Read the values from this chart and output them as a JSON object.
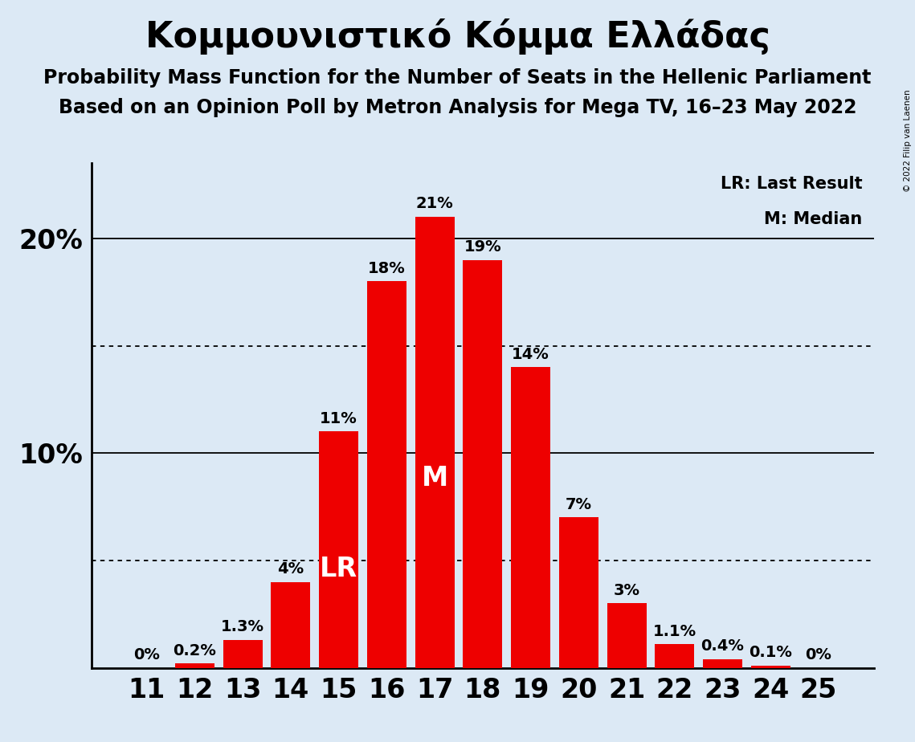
{
  "title": "Κομμουνιστικό Κόμμα Ελλάδας",
  "subtitle1": "Probability Mass Function for the Number of Seats in the Hellenic Parliament",
  "subtitle2": "Based on an Opinion Poll by Metron Analysis for Mega TV, 16–23 May 2022",
  "copyright": "© 2022 Filip van Laenen",
  "categories": [
    11,
    12,
    13,
    14,
    15,
    16,
    17,
    18,
    19,
    20,
    21,
    22,
    23,
    24,
    25
  ],
  "values": [
    0.0,
    0.2,
    1.3,
    4.0,
    11.0,
    18.0,
    21.0,
    19.0,
    14.0,
    7.0,
    3.0,
    1.1,
    0.4,
    0.1,
    0.0
  ],
  "labels": [
    "0%",
    "0.2%",
    "1.3%",
    "4%",
    "11%",
    "18%",
    "21%",
    "19%",
    "14%",
    "7%",
    "3%",
    "1.1%",
    "0.4%",
    "0.1%",
    "0%"
  ],
  "bar_color": "#EE0000",
  "background_color": "#DCE9F5",
  "ytick_solid": [
    10,
    20
  ],
  "ytick_dotted": [
    5,
    15
  ],
  "lr_seat": 15,
  "median_seat": 17,
  "lr_label": "LR",
  "median_label": "M",
  "legend_lr": "LR: Last Result",
  "legend_m": "M: Median",
  "ylim": [
    0,
    23.5
  ],
  "bar_label_fontsize": 14,
  "title_fontsize": 32,
  "subtitle_fontsize": 17,
  "ytick_fontsize": 24,
  "xtick_fontsize": 24,
  "annotation_fontsize": 24
}
